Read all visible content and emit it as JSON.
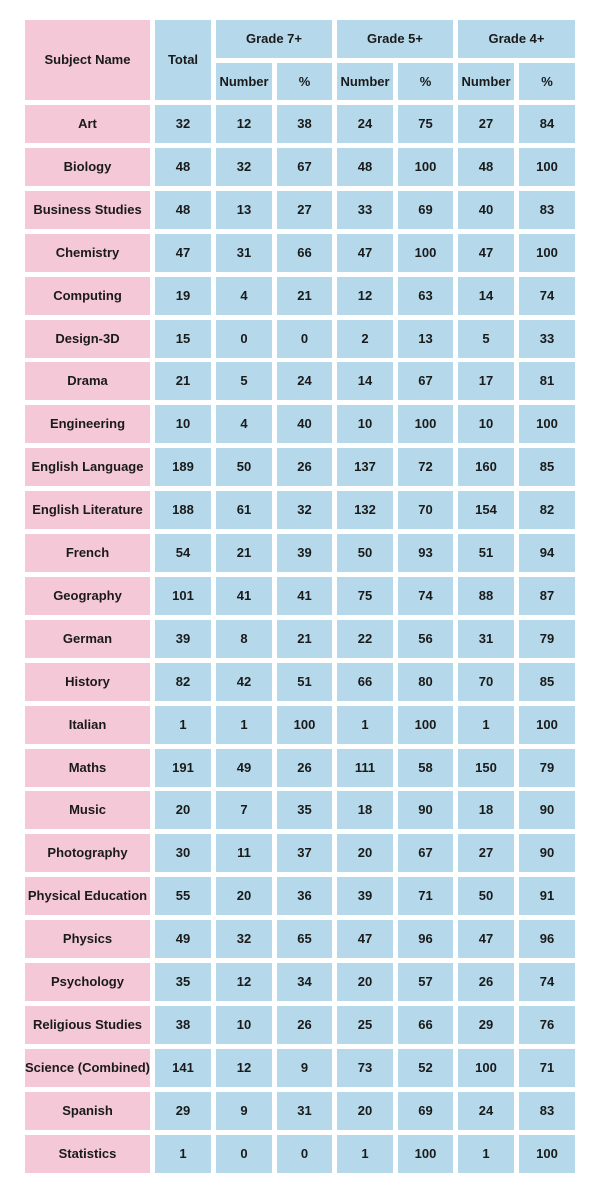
{
  "header": {
    "subject": "Subject Name",
    "total": "Total",
    "groups": [
      "Grade 7+",
      "Grade 5+",
      "Grade 4+"
    ],
    "number": "Number",
    "percent": "%"
  },
  "colors": {
    "pink": "#f4c8d6",
    "blue": "#b5d9ea"
  },
  "rows": [
    [
      "Art",
      "32",
      "12",
      "38",
      "24",
      "75",
      "27",
      "84"
    ],
    [
      "Biology",
      "48",
      "32",
      "67",
      "48",
      "100",
      "48",
      "100"
    ],
    [
      "Business Studies",
      "48",
      "13",
      "27",
      "33",
      "69",
      "40",
      "83"
    ],
    [
      "Chemistry",
      "47",
      "31",
      "66",
      "47",
      "100",
      "47",
      "100"
    ],
    [
      "Computing",
      "19",
      "4",
      "21",
      "12",
      "63",
      "14",
      "74"
    ],
    [
      "Design-3D",
      "15",
      "0",
      "0",
      "2",
      "13",
      "5",
      "33"
    ],
    [
      "Drama",
      "21",
      "5",
      "24",
      "14",
      "67",
      "17",
      "81"
    ],
    [
      "Engineering",
      "10",
      "4",
      "40",
      "10",
      "100",
      "10",
      "100"
    ],
    [
      "English Language",
      "189",
      "50",
      "26",
      "137",
      "72",
      "160",
      "85"
    ],
    [
      "English Literature",
      "188",
      "61",
      "32",
      "132",
      "70",
      "154",
      "82"
    ],
    [
      "French",
      "54",
      "21",
      "39",
      "50",
      "93",
      "51",
      "94"
    ],
    [
      "Geography",
      "101",
      "41",
      "41",
      "75",
      "74",
      "88",
      "87"
    ],
    [
      "German",
      "39",
      "8",
      "21",
      "22",
      "56",
      "31",
      "79"
    ],
    [
      "History",
      "82",
      "42",
      "51",
      "66",
      "80",
      "70",
      "85"
    ],
    [
      "Italian",
      "1",
      "1",
      "100",
      "1",
      "100",
      "1",
      "100"
    ],
    [
      "Maths",
      "191",
      "49",
      "26",
      "111",
      "58",
      "150",
      "79"
    ],
    [
      "Music",
      "20",
      "7",
      "35",
      "18",
      "90",
      "18",
      "90"
    ],
    [
      "Photography",
      "30",
      "11",
      "37",
      "20",
      "67",
      "27",
      "90"
    ],
    [
      "Physical Education",
      "55",
      "20",
      "36",
      "39",
      "71",
      "50",
      "91"
    ],
    [
      "Physics",
      "49",
      "32",
      "65",
      "47",
      "96",
      "47",
      "96"
    ],
    [
      "Psychology",
      "35",
      "12",
      "34",
      "20",
      "57",
      "26",
      "74"
    ],
    [
      "Religious Studies",
      "38",
      "10",
      "26",
      "25",
      "66",
      "29",
      "76"
    ],
    [
      "Science (Combined)",
      "141",
      "12",
      "9",
      "73",
      "52",
      "100",
      "71"
    ],
    [
      "Spanish",
      "29",
      "9",
      "31",
      "20",
      "69",
      "24",
      "83"
    ],
    [
      "Statistics",
      "1",
      "0",
      "0",
      "1",
      "100",
      "1",
      "100"
    ]
  ]
}
